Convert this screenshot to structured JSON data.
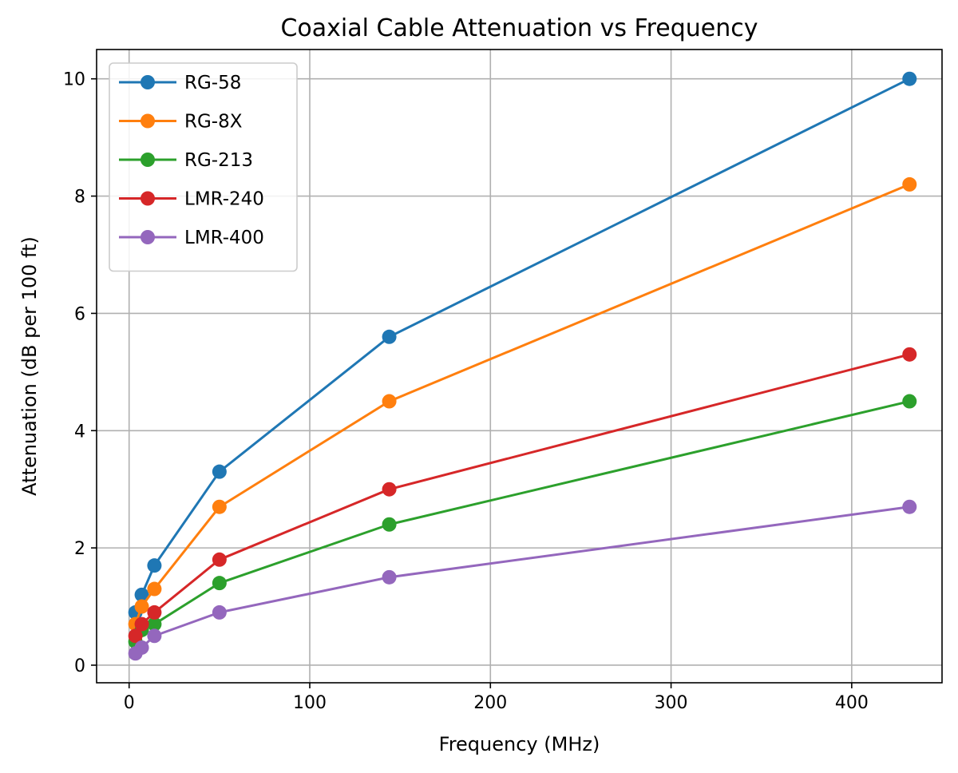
{
  "chart_data": {
    "type": "line",
    "title": "Coaxial Cable Attenuation vs Frequency",
    "xlabel": "Frequency (MHz)",
    "ylabel": "Attenuation (dB per 100 ft)",
    "xlim": [
      -18,
      450
    ],
    "ylim": [
      -0.3,
      10.5
    ],
    "xticks": [
      0,
      100,
      200,
      300,
      400
    ],
    "yticks": [
      0,
      2,
      4,
      6,
      8,
      10
    ],
    "grid": true,
    "legend_position": "top-left",
    "x": [
      3.5,
      7,
      14,
      50,
      144,
      432
    ],
    "series": [
      {
        "name": "RG-58",
        "color": "#1f77b4",
        "values": [
          0.9,
          1.2,
          1.7,
          3.3,
          5.6,
          10.0
        ]
      },
      {
        "name": "RG-8X",
        "color": "#ff7f0e",
        "values": [
          0.7,
          1.0,
          1.3,
          2.7,
          4.5,
          8.2
        ]
      },
      {
        "name": "RG-213",
        "color": "#2ca02c",
        "values": [
          0.4,
          0.6,
          0.7,
          1.4,
          2.4,
          4.5
        ]
      },
      {
        "name": "LMR-240",
        "color": "#d62728",
        "values": [
          0.5,
          0.7,
          0.9,
          1.8,
          3.0,
          5.3
        ]
      },
      {
        "name": "LMR-400",
        "color": "#9467bd",
        "values": [
          0.2,
          0.3,
          0.5,
          0.9,
          1.5,
          2.7
        ]
      }
    ]
  }
}
